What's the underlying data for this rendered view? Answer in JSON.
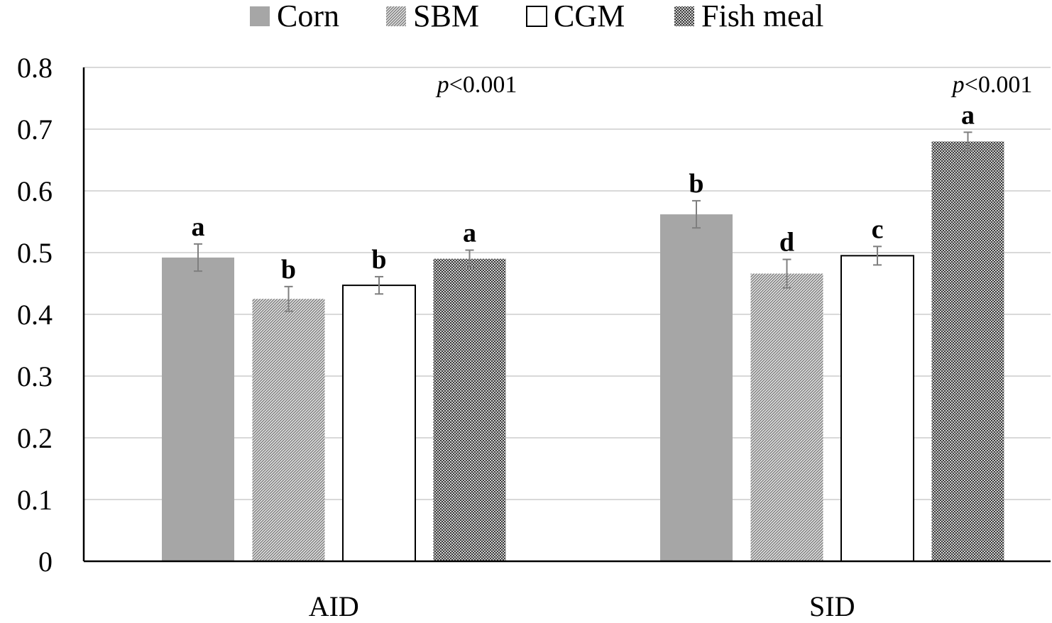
{
  "chart_data": {
    "type": "bar",
    "categories": [
      "AID",
      "SID"
    ],
    "ylim": [
      0,
      0.8
    ],
    "yticks": [
      "0",
      "0.1",
      "0.2",
      "0.3",
      "0.4",
      "0.5",
      "0.6",
      "0.7",
      "0.8"
    ],
    "grid": true,
    "legend_position": "top",
    "series": [
      {
        "name": "Corn",
        "values": [
          0.492,
          0.562
        ],
        "errors": [
          0.022,
          0.022
        ],
        "letters": [
          "a",
          "b"
        ],
        "pattern": "solid-gray",
        "color": "#a6a6a6"
      },
      {
        "name": "SBM",
        "values": [
          0.425,
          0.466
        ],
        "errors": [
          0.02,
          0.023
        ],
        "letters": [
          "b",
          "d"
        ],
        "pattern": "diagonal-hatch",
        "color": "#7f7f7f"
      },
      {
        "name": "CGM",
        "values": [
          0.447,
          0.495
        ],
        "errors": [
          0.014,
          0.015
        ],
        "letters": [
          "b",
          "c"
        ],
        "pattern": "white",
        "color": "#ffffff"
      },
      {
        "name": "Fish meal",
        "values": [
          0.49,
          0.68
        ],
        "errors": [
          0.014,
          0.015
        ],
        "letters": [
          "a",
          "a"
        ],
        "pattern": "checker",
        "color": "#595959"
      }
    ],
    "annotations": [
      {
        "group": "AID",
        "prefix": "p",
        "text": "<0.001"
      },
      {
        "group": "SID",
        "prefix": "p",
        "text": "<0.001"
      }
    ]
  }
}
